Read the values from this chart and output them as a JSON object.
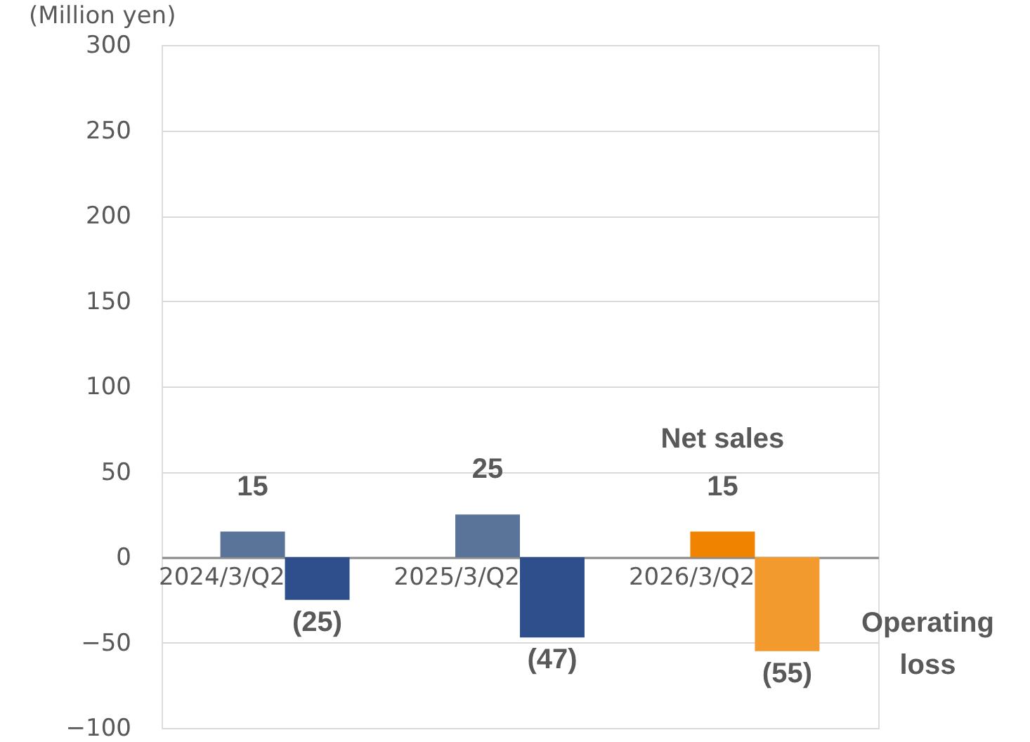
{
  "chart_data": {
    "type": "bar",
    "ylabel": "(Million yen)",
    "categories": [
      "2024/3/Q2",
      "2025/3/Q2",
      "2026/3/Q2"
    ],
    "series": [
      {
        "name": "Net sales",
        "colors": [
          "#5a7399",
          "#5a7399",
          "#f08300"
        ],
        "values": [
          15,
          25,
          15
        ],
        "value_labels": [
          "15",
          "25",
          "15"
        ]
      },
      {
        "name": "Operating loss",
        "colors": [
          "#2e4f8c",
          "#2e4f8c",
          "#f39a2e"
        ],
        "values": [
          -25,
          -47,
          -55
        ],
        "value_labels": [
          "(25)",
          "(47)",
          "(55)"
        ]
      }
    ],
    "ylim": [
      -100,
      300
    ],
    "yticks": [
      -100,
      -50,
      0,
      50,
      100,
      150,
      200,
      250,
      300
    ],
    "grid": "y"
  }
}
